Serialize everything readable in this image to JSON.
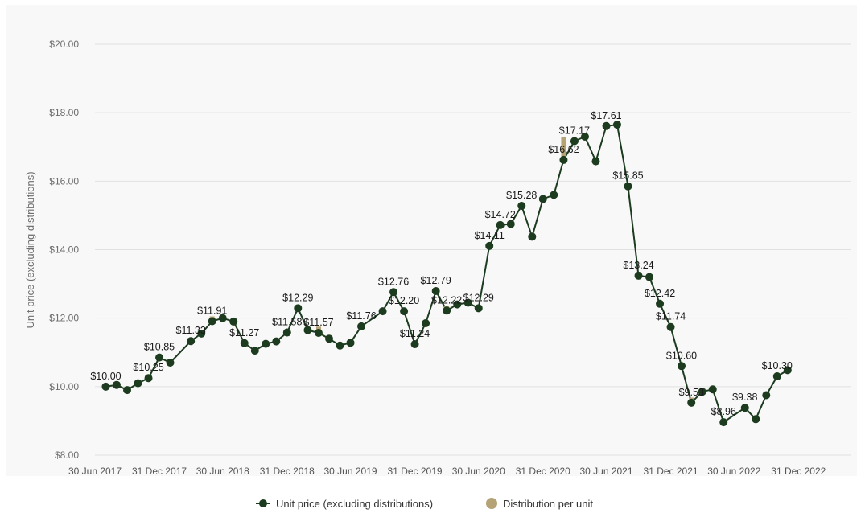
{
  "chart_data": {
    "type": "line",
    "ylabel": "Unit price (excluding distributions)",
    "ylim": [
      8,
      20
    ],
    "yticks": [
      "$8.00",
      "$10.00",
      "$12.00",
      "$14.00",
      "$16.00",
      "$18.00",
      "$20.00"
    ],
    "ytick_values": [
      8,
      10,
      12,
      14,
      16,
      18,
      20
    ],
    "xlim": [
      "2017-06-30",
      "2023-05-31"
    ],
    "xticks": [
      {
        "date": "2017-06-30",
        "label": "30 Jun 2017"
      },
      {
        "date": "2017-12-31",
        "label": "31 Dec 2017"
      },
      {
        "date": "2018-06-30",
        "label": "30 Jun 2018"
      },
      {
        "date": "2018-12-31",
        "label": "31 Dec 2018"
      },
      {
        "date": "2019-06-30",
        "label": "30 Jun 2019"
      },
      {
        "date": "2019-12-31",
        "label": "31 Dec 2019"
      },
      {
        "date": "2020-06-30",
        "label": "30 Jun 2020"
      },
      {
        "date": "2020-12-31",
        "label": "31 Dec 2020"
      },
      {
        "date": "2021-06-30",
        "label": "30 Jun 2021"
      },
      {
        "date": "2021-12-31",
        "label": "31 Dec 2021"
      },
      {
        "date": "2022-06-30",
        "label": "30 Jun 2022"
      },
      {
        "date": "2022-12-31",
        "label": "31 Dec 2022"
      }
    ],
    "grid": true,
    "legend_position": "bottom-center",
    "colors": {
      "unit_price": "#1c3b1f",
      "distribution": "#b5a275"
    },
    "series": [
      {
        "name": "Unit price (excluding distributions)",
        "points": [
          {
            "date": "2017-07-31",
            "y": 10.0,
            "label": "$10.00"
          },
          {
            "date": "2017-08-31",
            "y": 10.05
          },
          {
            "date": "2017-09-30",
            "y": 9.9
          },
          {
            "date": "2017-10-31",
            "y": 10.1
          },
          {
            "date": "2017-11-30",
            "y": 10.25,
            "label": "$10.25"
          },
          {
            "date": "2017-12-31",
            "y": 10.85,
            "label": "$10.85"
          },
          {
            "date": "2018-01-31",
            "y": 10.7
          },
          {
            "date": "2018-03-31",
            "y": 11.33,
            "label": "$11.33"
          },
          {
            "date": "2018-04-30",
            "y": 11.55
          },
          {
            "date": "2018-05-31",
            "y": 11.91,
            "label": "$11.91"
          },
          {
            "date": "2018-06-30",
            "y": 12.0
          },
          {
            "date": "2018-07-31",
            "y": 11.9
          },
          {
            "date": "2018-08-31",
            "y": 11.27,
            "label": "$11.27"
          },
          {
            "date": "2018-09-30",
            "y": 11.05
          },
          {
            "date": "2018-10-31",
            "y": 11.25
          },
          {
            "date": "2018-11-30",
            "y": 11.32
          },
          {
            "date": "2018-12-31",
            "y": 11.58,
            "label": "$11.58"
          },
          {
            "date": "2019-01-31",
            "y": 12.29,
            "label": "$12.29"
          },
          {
            "date": "2019-02-28",
            "y": 11.65
          },
          {
            "date": "2019-03-31",
            "y": 11.57,
            "label": "$11.57"
          },
          {
            "date": "2019-04-30",
            "y": 11.4
          },
          {
            "date": "2019-05-31",
            "y": 11.2
          },
          {
            "date": "2019-06-30",
            "y": 11.28
          },
          {
            "date": "2019-07-31",
            "y": 11.76,
            "label": "$11.76"
          },
          {
            "date": "2019-09-30",
            "y": 12.2
          },
          {
            "date": "2019-10-31",
            "y": 12.76,
            "label": "$12.76"
          },
          {
            "date": "2019-11-30",
            "y": 12.2,
            "label": "$12.20"
          },
          {
            "date": "2019-12-31",
            "y": 11.24,
            "label": "$11.24"
          },
          {
            "date": "2020-01-31",
            "y": 11.85
          },
          {
            "date": "2020-02-29",
            "y": 12.79,
            "label": "$12.79"
          },
          {
            "date": "2020-03-31",
            "y": 12.22,
            "label": "$12.22"
          },
          {
            "date": "2020-04-30",
            "y": 12.4
          },
          {
            "date": "2020-05-31",
            "y": 12.45
          },
          {
            "date": "2020-06-30",
            "y": 12.29,
            "label": "$12.29"
          },
          {
            "date": "2020-07-31",
            "y": 14.11,
            "label": "$14.11"
          },
          {
            "date": "2020-08-31",
            "y": 14.72,
            "label": "$14.72"
          },
          {
            "date": "2020-09-30",
            "y": 14.75
          },
          {
            "date": "2020-10-31",
            "y": 15.28,
            "label": "$15.28"
          },
          {
            "date": "2020-11-30",
            "y": 14.38
          },
          {
            "date": "2020-12-31",
            "y": 15.48
          },
          {
            "date": "2021-01-31",
            "y": 15.6
          },
          {
            "date": "2021-02-28",
            "y": 16.62,
            "label": "$16.62"
          },
          {
            "date": "2021-03-31",
            "y": 17.17,
            "label": "$17.17"
          },
          {
            "date": "2021-04-30",
            "y": 17.3
          },
          {
            "date": "2021-05-31",
            "y": 16.58
          },
          {
            "date": "2021-06-30",
            "y": 17.61,
            "label": "$17.61"
          },
          {
            "date": "2021-07-31",
            "y": 17.65
          },
          {
            "date": "2021-08-31",
            "y": 15.85,
            "label": "$15.85"
          },
          {
            "date": "2021-09-30",
            "y": 13.24,
            "label": "$13.24"
          },
          {
            "date": "2021-10-31",
            "y": 13.2
          },
          {
            "date": "2021-11-30",
            "y": 12.42,
            "label": "$12.42"
          },
          {
            "date": "2021-12-31",
            "y": 11.74,
            "label": "$11.74"
          },
          {
            "date": "2022-01-31",
            "y": 10.6,
            "label": "$10.60"
          },
          {
            "date": "2022-02-28",
            "y": 9.53,
            "label": "$9.53"
          },
          {
            "date": "2022-03-31",
            "y": 9.85
          },
          {
            "date": "2022-04-30",
            "y": 9.92
          },
          {
            "date": "2022-05-31",
            "y": 8.96,
            "label": "$8.96"
          },
          {
            "date": "2022-07-31",
            "y": 9.38,
            "label": "$9.38"
          },
          {
            "date": "2022-08-31",
            "y": 9.05
          },
          {
            "date": "2022-09-30",
            "y": 9.75
          },
          {
            "date": "2022-10-31",
            "y": 10.3,
            "label": "$10.30"
          },
          {
            "date": "2022-11-30",
            "y": 10.48
          }
        ]
      },
      {
        "name": "Distribution per unit",
        "points": [
          {
            "date": "2018-05-31",
            "from": 11.91,
            "to": 12.05
          },
          {
            "date": "2019-03-31",
            "from": 11.57,
            "to": 11.75
          },
          {
            "date": "2020-03-31",
            "from": 12.22,
            "to": 12.35
          },
          {
            "date": "2021-02-28",
            "from": 16.62,
            "to": 17.3
          },
          {
            "date": "2022-02-28",
            "from": 9.53,
            "to": 9.68
          }
        ]
      }
    ]
  },
  "legend": {
    "unit_price": "Unit price (excluding distributions)",
    "distribution": "Distribution per unit"
  }
}
